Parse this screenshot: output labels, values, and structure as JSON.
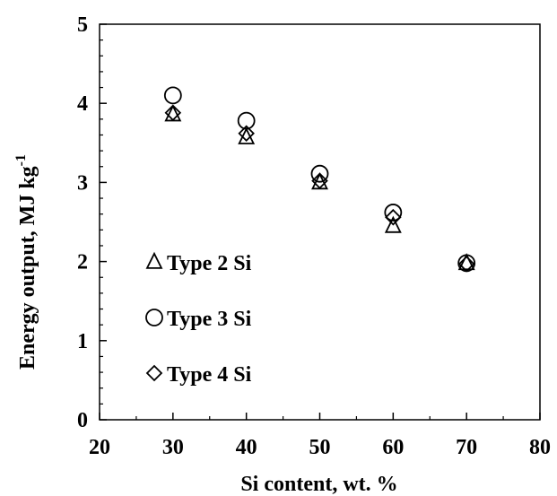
{
  "chart_data": {
    "type": "scatter",
    "title": "",
    "xlabel": "Si content, wt. %",
    "ylabel": "Energy output, MJ kg",
    "ylabel_superscript": "-1",
    "xlim": [
      20,
      80
    ],
    "ylim": [
      0,
      5
    ],
    "x_ticks": [
      "20",
      "30",
      "40",
      "50",
      "60",
      "70",
      "80"
    ],
    "y_ticks": [
      "0",
      "1",
      "2",
      "3",
      "4",
      "5"
    ],
    "grid": false,
    "legend_position": "left",
    "series": [
      {
        "name": "Type 2 Si",
        "marker": "triangle",
        "x": [
          30,
          40,
          50,
          60,
          70
        ],
        "y": [
          3.86,
          3.57,
          3.0,
          2.45,
          1.98
        ]
      },
      {
        "name": "Type 3 Si",
        "marker": "circle",
        "x": [
          30,
          40,
          50,
          60,
          70
        ],
        "y": [
          4.1,
          3.78,
          3.11,
          2.62,
          1.98
        ]
      },
      {
        "name": "Type 4 Si",
        "marker": "diamond",
        "x": [
          30,
          40,
          50,
          60,
          70
        ],
        "y": [
          3.88,
          3.62,
          3.02,
          2.56,
          1.97
        ]
      }
    ]
  }
}
